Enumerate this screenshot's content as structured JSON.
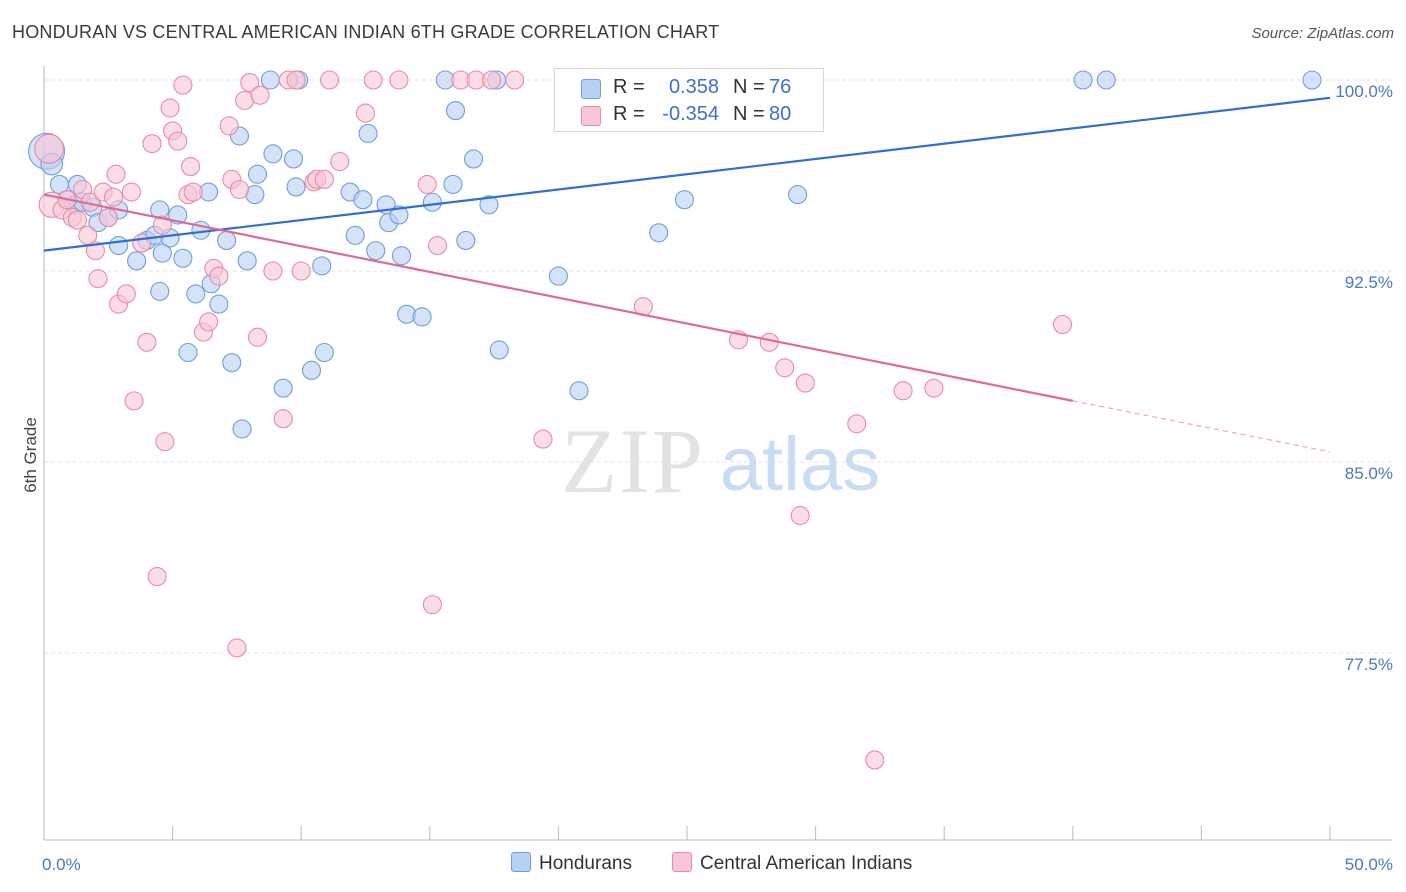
{
  "title": "HONDURAN VS CENTRAL AMERICAN INDIAN 6TH GRADE CORRELATION CHART",
  "source": "Source: ZipAtlas.com",
  "watermark": {
    "zip": "ZIP",
    "atlas": "atlas"
  },
  "colors": {
    "blue_fill": "#b7d1f3",
    "blue_stroke": "#6f9edf",
    "blue_line": "#2f6fd0",
    "pink_fill": "#f8c6d5",
    "pink_stroke": "#e98aa7",
    "pink_line": "#e06a96",
    "grid": "#e3e3e3",
    "tick_text": "#4a78c8"
  },
  "legend": {
    "rows": [
      {
        "r_label": "R =",
        "r_value": "0.358",
        "n_label": "N =",
        "n_value": "76",
        "color": "#b7d1f3",
        "border": "#6f9edf"
      },
      {
        "r_label": "R =",
        "r_value": "-0.354",
        "n_label": "N =",
        "n_value": "80",
        "color": "#f8c6d5",
        "border": "#e98aa7"
      }
    ],
    "bottom": [
      {
        "label": "Hondurans",
        "color": "#b7d1f3",
        "border": "#6f9edf"
      },
      {
        "label": "Central American Indians",
        "color": "#f8c6d5",
        "border": "#e98aa7"
      }
    ]
  },
  "chart_data": {
    "type": "scatter",
    "xlabel": "",
    "ylabel": "6th Grade",
    "xlim": [
      0,
      50
    ],
    "ylim": [
      71.5,
      100.4
    ],
    "x_tick_labels": [
      {
        "value": 0,
        "label": "0.0%"
      },
      {
        "value": 50,
        "label": "50.0%"
      }
    ],
    "x_minor_ticks": [
      0,
      5,
      10,
      15,
      20,
      25,
      30,
      35,
      40,
      45,
      50
    ],
    "y_ticks": [
      {
        "value": 100,
        "label": "100.0%"
      },
      {
        "value": 92.5,
        "label": "92.5%"
      },
      {
        "value": 85,
        "label": "85.0%"
      },
      {
        "value": 77.5,
        "label": "77.5%"
      }
    ],
    "grid": true,
    "series": [
      {
        "name": "Hondurans",
        "color": "#b7d1f3",
        "trend": {
          "x": [
            0,
            50
          ],
          "y": [
            93.3,
            99.3
          ],
          "style": "solid"
        },
        "points": [
          [
            0.1,
            97.2,
            2.0
          ],
          [
            0.3,
            96.7,
            1.2
          ],
          [
            0.6,
            95.9,
            1.0
          ],
          [
            0.9,
            95.3,
            1.0
          ],
          [
            1.2,
            95.1,
            1.0
          ],
          [
            1.3,
            95.9,
            1.0
          ],
          [
            1.5,
            95.2,
            1.0
          ],
          [
            1.9,
            95.0,
            1.0
          ],
          [
            2.1,
            94.4,
            1.0
          ],
          [
            2.5,
            94.6,
            1.0
          ],
          [
            2.9,
            94.9,
            1.0
          ],
          [
            2.9,
            93.5,
            1.0
          ],
          [
            3.6,
            92.9,
            1.0
          ],
          [
            4.0,
            93.7,
            1.0
          ],
          [
            4.3,
            93.9,
            1.0
          ],
          [
            4.5,
            91.7,
            1.0
          ],
          [
            4.5,
            94.9,
            1.0
          ],
          [
            4.6,
            93.2,
            1.0
          ],
          [
            4.9,
            93.8,
            1.0
          ],
          [
            5.2,
            94.7,
            1.0
          ],
          [
            5.4,
            93.0,
            1.0
          ],
          [
            5.6,
            89.3,
            1.0
          ],
          [
            5.9,
            91.6,
            1.0
          ],
          [
            6.1,
            94.1,
            1.0
          ],
          [
            6.4,
            95.6,
            1.0
          ],
          [
            6.5,
            92.0,
            1.0
          ],
          [
            6.8,
            91.2,
            1.0
          ],
          [
            7.1,
            93.7,
            1.0
          ],
          [
            7.3,
            88.9,
            1.0
          ],
          [
            7.6,
            97.8,
            1.0
          ],
          [
            7.7,
            86.3,
            1.0
          ],
          [
            7.9,
            92.9,
            1.0
          ],
          [
            8.2,
            95.5,
            1.0
          ],
          [
            8.3,
            96.3,
            1.0
          ],
          [
            8.8,
            100.0,
            1.0
          ],
          [
            8.9,
            97.1,
            1.0
          ],
          [
            9.3,
            87.9,
            1.0
          ],
          [
            9.7,
            96.9,
            1.0
          ],
          [
            9.8,
            95.8,
            1.0
          ],
          [
            9.9,
            100.0,
            1.0
          ],
          [
            10.4,
            88.6,
            1.0
          ],
          [
            10.8,
            92.7,
            1.0
          ],
          [
            10.9,
            89.3,
            1.0
          ],
          [
            11.9,
            95.6,
            1.0
          ],
          [
            12.1,
            93.9,
            1.0
          ],
          [
            12.4,
            95.3,
            1.0
          ],
          [
            12.6,
            97.9,
            1.0
          ],
          [
            12.9,
            93.3,
            1.0
          ],
          [
            13.3,
            95.1,
            1.0
          ],
          [
            13.4,
            94.4,
            1.0
          ],
          [
            13.8,
            94.7,
            1.0
          ],
          [
            13.9,
            93.1,
            1.0
          ],
          [
            14.1,
            90.8,
            1.0
          ],
          [
            14.7,
            90.7,
            1.0
          ],
          [
            15.1,
            95.2,
            1.0
          ],
          [
            15.6,
            100.0,
            1.0
          ],
          [
            15.9,
            95.9,
            1.0
          ],
          [
            16.0,
            98.8,
            1.0
          ],
          [
            16.4,
            93.7,
            1.0
          ],
          [
            16.7,
            96.9,
            1.0
          ],
          [
            17.3,
            95.1,
            1.0
          ],
          [
            17.6,
            100.0,
            1.0
          ],
          [
            17.7,
            89.4,
            1.0
          ],
          [
            20.0,
            92.3,
            1.0
          ],
          [
            20.8,
            87.8,
            1.0
          ],
          [
            23.9,
            94.0,
            1.0
          ],
          [
            24.9,
            95.3,
            1.0
          ],
          [
            25.9,
            100.0,
            1.0
          ],
          [
            28.2,
            100.0,
            1.0
          ],
          [
            29.3,
            95.5,
            1.0
          ],
          [
            40.4,
            100.0,
            1.0
          ],
          [
            41.3,
            100.0,
            1.0
          ],
          [
            49.3,
            100.0,
            1.0
          ]
        ]
      },
      {
        "name": "Central American Indians",
        "color": "#f8c6d5",
        "trend": {
          "x": [
            0,
            40
          ],
          "y": [
            95.5,
            87.4
          ],
          "dashed_to": {
            "x": 50,
            "y": 85.4
          }
        },
        "points": [
          [
            0.2,
            97.3,
            1.6
          ],
          [
            0.3,
            95.1,
            1.4
          ],
          [
            0.7,
            94.9,
            1.0
          ],
          [
            0.9,
            95.3,
            1.0
          ],
          [
            1.1,
            94.6,
            1.0
          ],
          [
            1.3,
            94.5,
            1.0
          ],
          [
            1.5,
            95.7,
            1.0
          ],
          [
            1.7,
            93.9,
            1.0
          ],
          [
            1.8,
            95.2,
            1.0
          ],
          [
            2.0,
            93.3,
            1.0
          ],
          [
            2.1,
            92.2,
            1.0
          ],
          [
            2.3,
            95.6,
            1.0
          ],
          [
            2.5,
            94.6,
            1.0
          ],
          [
            2.7,
            95.4,
            1.0
          ],
          [
            2.8,
            96.3,
            1.0
          ],
          [
            2.9,
            91.2,
            1.0
          ],
          [
            3.2,
            91.6,
            1.0
          ],
          [
            3.4,
            95.6,
            1.0
          ],
          [
            3.5,
            87.4,
            1.0
          ],
          [
            3.8,
            93.6,
            1.0
          ],
          [
            4.0,
            89.7,
            1.0
          ],
          [
            4.2,
            97.5,
            1.0
          ],
          [
            4.4,
            80.5,
            1.0
          ],
          [
            4.6,
            94.3,
            1.0
          ],
          [
            4.7,
            85.8,
            1.0
          ],
          [
            4.9,
            98.9,
            1.0
          ],
          [
            5.0,
            98.0,
            1.0
          ],
          [
            5.2,
            97.6,
            1.0
          ],
          [
            5.4,
            99.8,
            1.0
          ],
          [
            5.6,
            95.5,
            1.0
          ],
          [
            5.7,
            96.6,
            1.0
          ],
          [
            5.8,
            95.6,
            1.0
          ],
          [
            6.2,
            90.1,
            1.0
          ],
          [
            6.4,
            90.5,
            1.0
          ],
          [
            6.6,
            92.6,
            1.0
          ],
          [
            6.8,
            92.3,
            1.0
          ],
          [
            7.2,
            98.2,
            1.0
          ],
          [
            7.3,
            96.1,
            1.0
          ],
          [
            7.5,
            77.7,
            1.0
          ],
          [
            7.6,
            95.7,
            1.0
          ],
          [
            7.8,
            99.2,
            1.0
          ],
          [
            8.0,
            99.9,
            1.0
          ],
          [
            8.3,
            89.9,
            1.0
          ],
          [
            8.4,
            99.4,
            1.0
          ],
          [
            8.9,
            92.5,
            1.0
          ],
          [
            9.3,
            86.7,
            1.0
          ],
          [
            9.5,
            100.0,
            1.0
          ],
          [
            9.8,
            100.0,
            1.0
          ],
          [
            10.0,
            92.5,
            1.0
          ],
          [
            10.5,
            96.0,
            1.0
          ],
          [
            10.6,
            96.1,
            1.0
          ],
          [
            10.9,
            96.1,
            1.0
          ],
          [
            11.1,
            100.0,
            1.0
          ],
          [
            11.5,
            96.8,
            1.0
          ],
          [
            12.5,
            98.7,
            1.0
          ],
          [
            12.8,
            100.0,
            1.0
          ],
          [
            13.8,
            100.0,
            1.0
          ],
          [
            14.9,
            95.9,
            1.0
          ],
          [
            15.1,
            79.4,
            1.0
          ],
          [
            15.3,
            93.5,
            1.0
          ],
          [
            16.2,
            100.0,
            1.0
          ],
          [
            16.8,
            100.0,
            1.0
          ],
          [
            17.4,
            100.0,
            1.0
          ],
          [
            18.3,
            100.0,
            1.0
          ],
          [
            19.4,
            85.9,
            1.0
          ],
          [
            23.3,
            91.1,
            1.0
          ],
          [
            27.0,
            89.8,
            1.0
          ],
          [
            28.2,
            89.7,
            1.0
          ],
          [
            28.8,
            88.7,
            1.0
          ],
          [
            29.4,
            82.9,
            1.0
          ],
          [
            29.6,
            88.1,
            1.0
          ],
          [
            31.6,
            86.5,
            1.0
          ],
          [
            32.3,
            73.3,
            1.0
          ],
          [
            33.4,
            87.8,
            1.0
          ],
          [
            34.6,
            87.9,
            1.0
          ],
          [
            39.6,
            90.4,
            1.0
          ]
        ]
      }
    ]
  }
}
